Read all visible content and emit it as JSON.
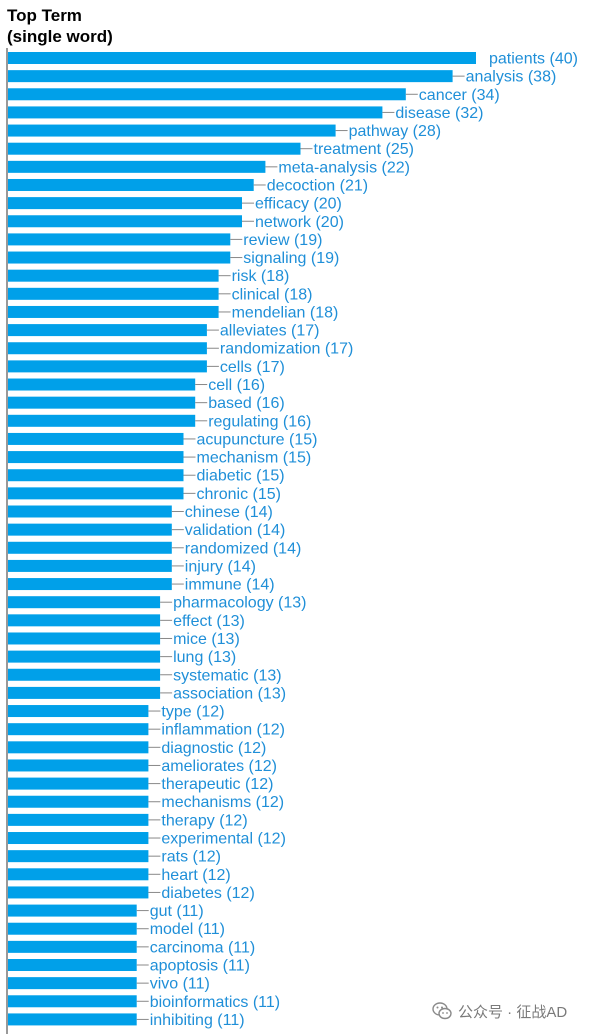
{
  "chart_data": {
    "type": "bar",
    "orientation": "horizontal",
    "title_lines": [
      "Top Term",
      "(single word)"
    ],
    "xlabel": "",
    "ylabel": "",
    "grid": false,
    "legend": "none",
    "bar_color": "#00a0e9",
    "label_color": "#1f8fd8",
    "leader_color": "#888888",
    "categories": [
      "patients",
      "analysis",
      "cancer",
      "disease",
      "pathway",
      "treatment",
      "meta-analysis",
      "decoction",
      "efficacy",
      "network",
      "review",
      "signaling",
      "risk",
      "clinical",
      "mendelian",
      "alleviates",
      "randomization",
      "cells",
      "cell",
      "based",
      "regulating",
      "acupuncture",
      "mechanism",
      "diabetic",
      "chronic",
      "chinese",
      "validation",
      "randomized",
      "injury",
      "immune",
      "pharmacology",
      "effect",
      "mice",
      "lung",
      "systematic",
      "association",
      "type",
      "inflammation",
      "diagnostic",
      "ameliorates",
      "therapeutic",
      "mechanisms",
      "therapy",
      "experimental",
      "rats",
      "heart",
      "diabetes",
      "gut",
      "model",
      "carcinoma",
      "apoptosis",
      "vivo",
      "bioinformatics",
      "inhibiting"
    ],
    "values": [
      40,
      38,
      34,
      32,
      28,
      25,
      22,
      21,
      20,
      20,
      19,
      19,
      18,
      18,
      18,
      17,
      17,
      17,
      16,
      16,
      16,
      15,
      15,
      15,
      15,
      14,
      14,
      14,
      14,
      14,
      13,
      13,
      13,
      13,
      13,
      13,
      12,
      12,
      12,
      12,
      12,
      12,
      12,
      12,
      12,
      12,
      12,
      11,
      11,
      11,
      11,
      11,
      11,
      11
    ],
    "data_labels": [
      "patients (40)",
      "analysis (38)",
      "cancer (34)",
      "disease (32)",
      "pathway (28)",
      "treatment (25)",
      "meta-analysis (22)",
      "decoction (21)",
      "efficacy (20)",
      "network (20)",
      "review (19)",
      "signaling (19)",
      "risk (18)",
      "clinical (18)",
      "mendelian (18)",
      "alleviates (17)",
      "randomization (17)",
      "cells (17)",
      "cell (16)",
      "based (16)",
      "regulating (16)",
      "acupuncture (15)",
      "mechanism (15)",
      "diabetic (15)",
      "chronic (15)",
      "chinese (14)",
      "validation (14)",
      "randomized (14)",
      "injury (14)",
      "immune (14)",
      "pharmacology (13)",
      "effect (13)",
      "mice (13)",
      "lung (13)",
      "systematic (13)",
      "association (13)",
      "type (12)",
      "inflammation (12)",
      "diagnostic (12)",
      "ameliorates (12)",
      "therapeutic (12)",
      "mechanisms (12)",
      "therapy (12)",
      "experimental (12)",
      "rats (12)",
      "heart (12)",
      "diabetes (12)",
      "gut (11)",
      "model (11)",
      "carcinoma (11)",
      "apoptosis (11)",
      "vivo (11)",
      "bioinformatics (11)",
      "inhibiting (11)"
    ]
  },
  "watermark": {
    "text": "公众号 · 征战AD",
    "icon": "wechat-icon",
    "color": "#7a7a7a"
  }
}
